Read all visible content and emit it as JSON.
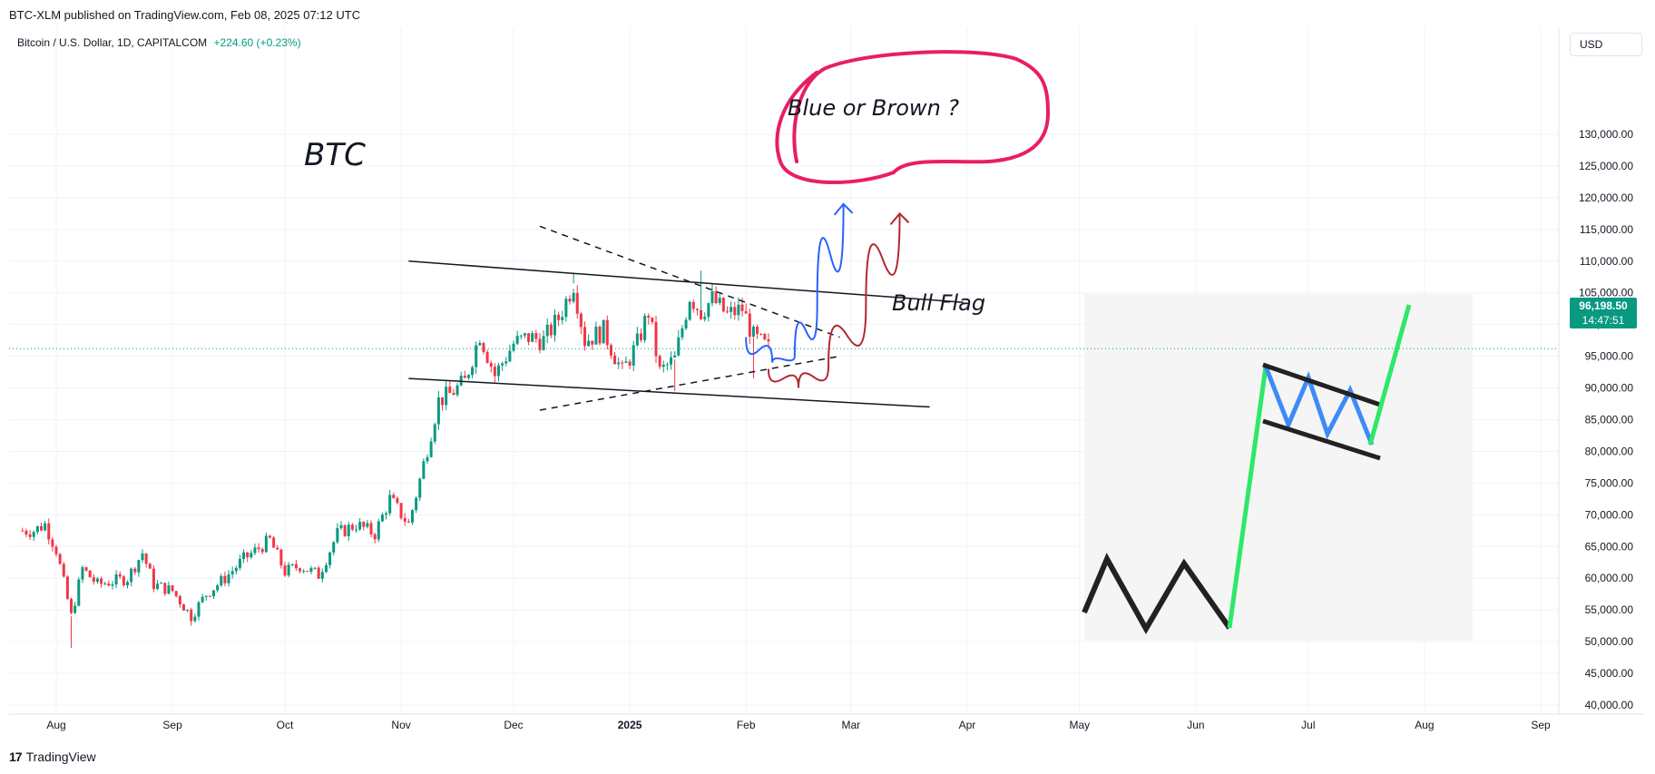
{
  "header": {
    "published_by": "BTC-XLM published on TradingView.com, Feb 08, 2025 07:12 UTC"
  },
  "symbol": {
    "title": "Bitcoin / U.S. Dollar, 1D, CAPITALCOM",
    "change": "+224.60 (+0.23%)"
  },
  "currency_button": "USD",
  "price_tag": {
    "price": "96,198.50",
    "countdown": "14:47:51"
  },
  "footer": {
    "brand": "TradingView",
    "logo_mark": "17"
  },
  "colors": {
    "up": "#089981",
    "down": "#f23645",
    "grid": "#f0f3fa",
    "blue_path": "#2962ff",
    "brown_path": "#b22833",
    "circle": "#e91e63",
    "flag_pole": "#2ee86a",
    "flag_wave": "#3d8bf7",
    "inset_bg": "#f5f5f5"
  },
  "annotations": {
    "btc": "BTC",
    "question": "Blue or Brown ?",
    "bull_flag": "Bull Flag"
  },
  "chart_data": {
    "type": "candlestick",
    "y_axis_labels": [
      "130,000.00",
      "125,000.00",
      "120,000.00",
      "115,000.00",
      "110,000.00",
      "105,000.00",
      "100,000.00",
      "95,000.00",
      "90,000.00",
      "85,000.00",
      "80,000.00",
      "75,000.00",
      "70,000.00",
      "65,000.00",
      "60,000.00",
      "55,000.00",
      "50,000.00",
      "45,000.00",
      "40,000.00"
    ],
    "y_axis_values": [
      130000,
      125000,
      120000,
      115000,
      110000,
      105000,
      100000,
      95000,
      90000,
      85000,
      80000,
      75000,
      70000,
      65000,
      60000,
      55000,
      50000,
      45000,
      40000
    ],
    "x_axis_labels": [
      "Aug",
      "Sep",
      "Oct",
      "Nov",
      "Dec",
      "2025",
      "Feb",
      "Mar",
      "Apr",
      "May",
      "Jun",
      "Jul",
      "Aug",
      "Sep"
    ],
    "ylim": [
      40000,
      130000
    ],
    "last_price": 96198.5,
    "price_series": [
      [
        "2024-07-26",
        67500
      ],
      [
        "2024-07-29",
        68500
      ],
      [
        "2024-08-01",
        64500
      ],
      [
        "2024-08-05",
        54000
      ],
      [
        "2024-08-08",
        61500
      ],
      [
        "2024-08-12",
        59000
      ],
      [
        "2024-08-16",
        59500
      ],
      [
        "2024-08-20",
        60000
      ],
      [
        "2024-08-24",
        64000
      ],
      [
        "2024-08-27",
        59000
      ],
      [
        "2024-09-01",
        58000
      ],
      [
        "2024-09-06",
        54000
      ],
      [
        "2024-09-10",
        57500
      ],
      [
        "2024-09-15",
        60000
      ],
      [
        "2024-09-20",
        63000
      ],
      [
        "2024-09-27",
        66000
      ],
      [
        "2024-10-01",
        61000
      ],
      [
        "2024-10-05",
        62000
      ],
      [
        "2024-10-10",
        60500
      ],
      [
        "2024-10-15",
        67000
      ],
      [
        "2024-10-20",
        68500
      ],
      [
        "2024-10-25",
        67000
      ],
      [
        "2024-10-29",
        72500
      ],
      [
        "2024-11-03",
        68500
      ],
      [
        "2024-11-06",
        75500
      ],
      [
        "2024-11-11",
        88000
      ],
      [
        "2024-11-14",
        89000
      ],
      [
        "2024-11-18",
        91000
      ],
      [
        "2024-11-22",
        98500
      ],
      [
        "2024-11-26",
        92000
      ],
      [
        "2024-12-01",
        97000
      ],
      [
        "2024-12-05",
        98000
      ],
      [
        "2024-12-09",
        97500
      ],
      [
        "2024-12-13",
        101000
      ],
      [
        "2024-12-17",
        106500
      ],
      [
        "2024-12-20",
        97500
      ],
      [
        "2024-12-25",
        99000
      ],
      [
        "2024-12-30",
        92500
      ],
      [
        "2025-01-03",
        97000
      ],
      [
        "2025-01-06",
        102000
      ],
      [
        "2025-01-09",
        92500
      ],
      [
        "2025-01-13",
        94500
      ],
      [
        "2025-01-17",
        104500
      ],
      [
        "2025-01-20",
        102000
      ],
      [
        "2025-01-23",
        104000
      ],
      [
        "2025-01-27",
        101500
      ],
      [
        "2025-01-31",
        102500
      ],
      [
        "2025-02-03",
        98000
      ],
      [
        "2025-02-07",
        96198.5
      ]
    ],
    "volatility_spikes": [
      [
        "2024-08-05",
        49000
      ],
      [
        "2024-09-06",
        52500
      ],
      [
        "2025-01-13",
        89500
      ],
      [
        "2025-02-03",
        91500
      ],
      [
        "2025-01-20",
        108500
      ],
      [
        "2024-12-17",
        108000
      ]
    ],
    "trendlines": [
      {
        "style": "solid",
        "from": [
          "2024-11-03",
          110000
        ],
        "to": [
          "2025-03-31",
          103500
        ]
      },
      {
        "style": "solid",
        "from": [
          "2024-11-03",
          91500
        ],
        "to": [
          "2025-03-22",
          87000
        ]
      },
      {
        "style": "dashed",
        "from": [
          "2024-12-08",
          115500
        ],
        "to": [
          "2025-02-26",
          98000
        ]
      },
      {
        "style": "dashed",
        "from": [
          "2024-12-08",
          86500
        ],
        "to": [
          "2025-02-26",
          95000
        ]
      }
    ],
    "projection_paths": [
      {
        "name": "Blue",
        "points": [
          [
            "2025-02-01",
            98000
          ],
          [
            "2025-02-08",
            94000
          ],
          [
            "2025-02-14",
            95000
          ],
          [
            "2025-02-20",
            103000
          ],
          [
            "2025-02-27",
            119000
          ]
        ]
      },
      {
        "name": "Brown",
        "points": [
          [
            "2025-02-07",
            93000
          ],
          [
            "2025-02-15",
            90000
          ],
          [
            "2025-02-23",
            93500
          ],
          [
            "2025-03-05",
            103000
          ],
          [
            "2025-03-14",
            117500
          ]
        ]
      }
    ]
  }
}
